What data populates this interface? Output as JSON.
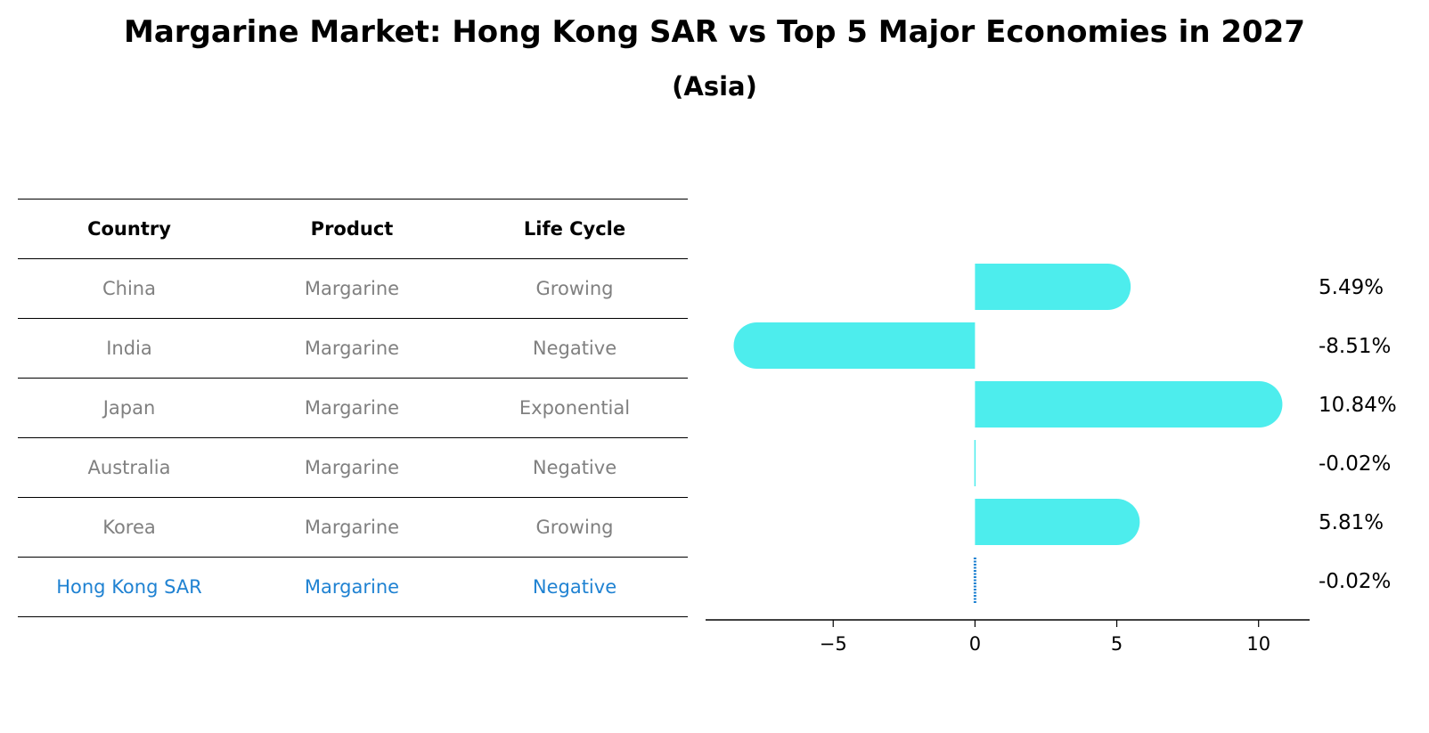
{
  "title": "Margarine Market: Hong Kong SAR vs Top 5 Major Economies in 2027",
  "subtitle": "(Asia)",
  "table": {
    "headers": [
      "Country",
      "Product",
      "Life Cycle"
    ],
    "rows": [
      [
        "China",
        "Margarine",
        "Growing"
      ],
      [
        "India",
        "Margarine",
        "Negative"
      ],
      [
        "Japan",
        "Margarine",
        "Exponential"
      ],
      [
        "Australia",
        "Margarine",
        "Negative"
      ],
      [
        "Korea",
        "Margarine",
        "Growing"
      ],
      [
        "Hong Kong SAR",
        "Margarine",
        "Negative"
      ]
    ],
    "highlight_row": 5
  },
  "colors": {
    "bar": "#4deded",
    "highlight": "#1f82d2",
    "muted_text": "#808080"
  },
  "chart_data": {
    "type": "bar",
    "orientation": "horizontal",
    "categories": [
      "China",
      "India",
      "Japan",
      "Australia",
      "Korea",
      "Hong Kong SAR"
    ],
    "values": [
      5.49,
      -8.51,
      10.84,
      -0.02,
      5.81,
      -0.02
    ],
    "value_labels": [
      "5.49%",
      "-8.51%",
      "10.84%",
      "-0.02%",
      "5.81%",
      "-0.02%"
    ],
    "xlim": [
      -9.5,
      11.8
    ],
    "xticks": [
      -5,
      0,
      5,
      10
    ],
    "xtick_labels": [
      "−5",
      "0",
      "5",
      "10"
    ],
    "grid": false
  }
}
